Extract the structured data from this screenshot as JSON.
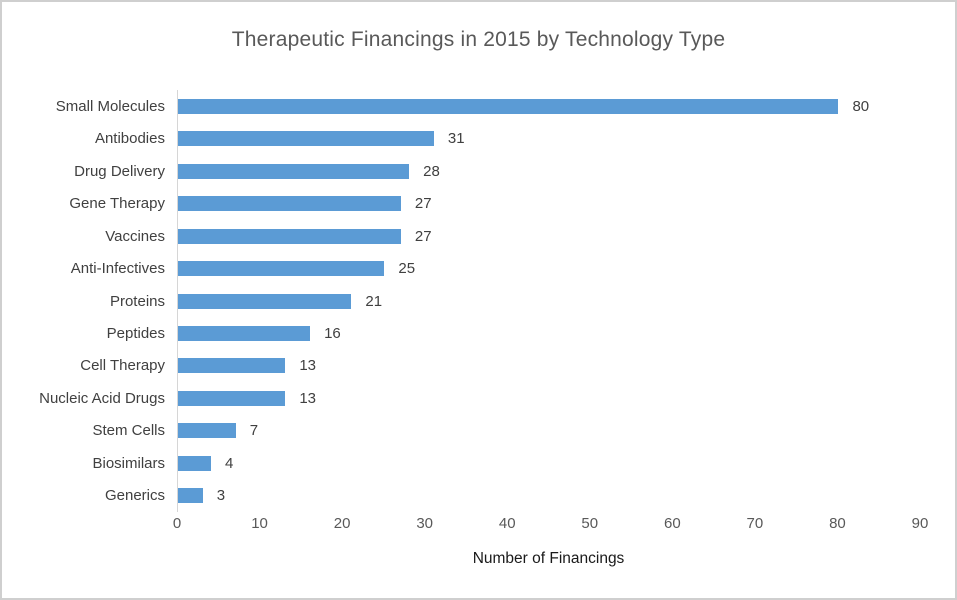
{
  "chart_data": {
    "type": "bar",
    "orientation": "horizontal",
    "title": "Therapeutic Financings in 2015 by Technology Type",
    "categories": [
      "Small Molecules",
      "Antibodies",
      "Drug Delivery",
      "Gene Therapy",
      "Vaccines",
      "Anti-Infectives",
      "Proteins",
      "Peptides",
      "Cell Therapy",
      "Nucleic Acid Drugs",
      "Stem Cells",
      "Biosimilars",
      "Generics"
    ],
    "values": [
      80,
      31,
      28,
      27,
      27,
      25,
      21,
      16,
      13,
      13,
      7,
      4,
      3
    ],
    "data_labels": [
      "80",
      "31",
      "28",
      "27",
      "27",
      "25",
      "21",
      "16",
      "13",
      "13",
      "7",
      "4",
      "3"
    ],
    "xlabel": "Number of Financings",
    "ylabel": "",
    "xlim": [
      0,
      90
    ],
    "xticks": [
      "0",
      "10",
      "20",
      "30",
      "40",
      "50",
      "60",
      "70",
      "80",
      "90"
    ],
    "grid": false,
    "legend": false,
    "bar_color": "#5B9BD5",
    "title_color": "#595959",
    "tick_color": "#595959",
    "label_color": "#404040"
  }
}
